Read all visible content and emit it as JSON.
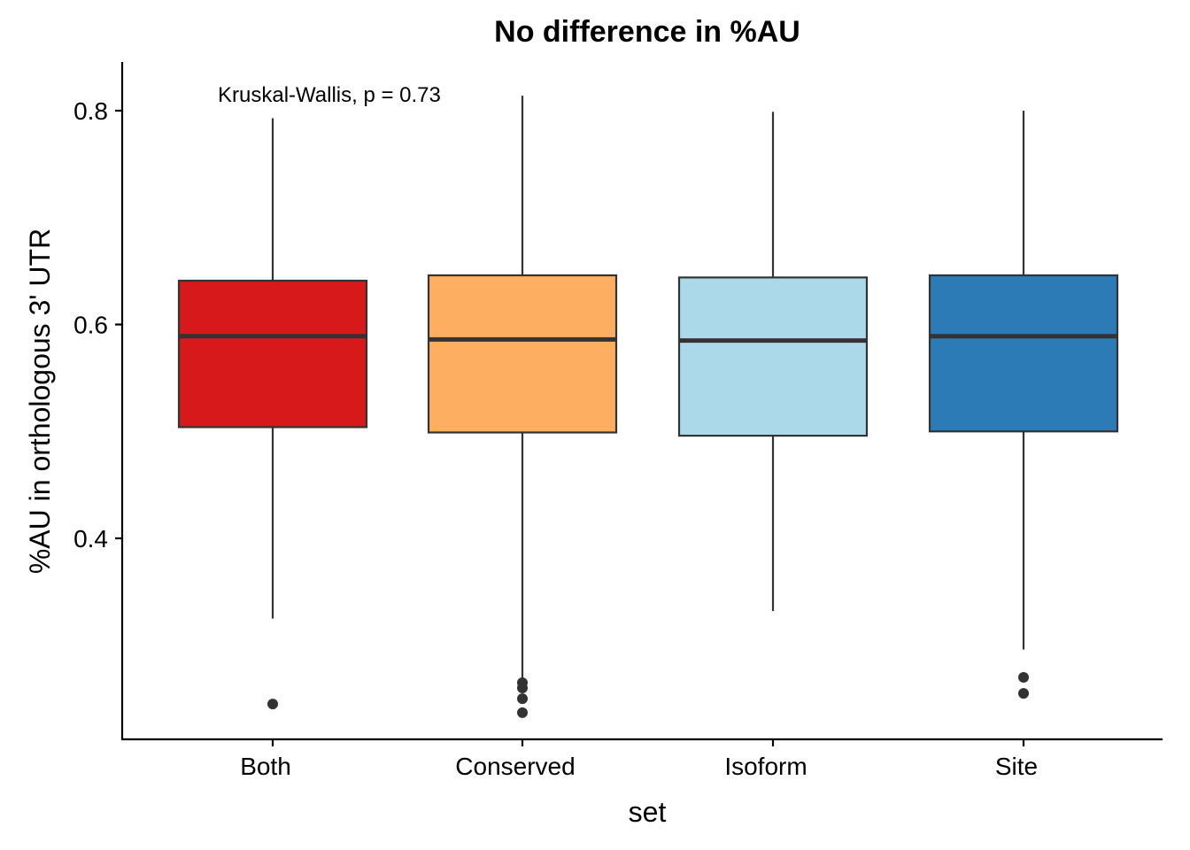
{
  "chart_data": {
    "type": "box",
    "title": "No difference in %AU",
    "xlabel": "set",
    "ylabel": "%AU in orthologous 3' UTR",
    "annotation": "Kruskal-Wallis, p = 0.73",
    "ylim": [
      0.26,
      0.845
    ],
    "yticks": [
      0.4,
      0.6,
      0.8
    ],
    "ytick_labels": [
      "0.4",
      "0.6",
      "0.8"
    ],
    "grid": false,
    "legend": "none",
    "categories": [
      "Both",
      "Conserved",
      "Isoform",
      "Site"
    ],
    "boxes": [
      {
        "name": "Both",
        "color": "#D7191C",
        "min": 0.325,
        "q1": 0.504,
        "median": 0.589,
        "q3": 0.641,
        "max": 0.793,
        "outliers": [
          0.245
        ]
      },
      {
        "name": "Conserved",
        "color": "#FDAE61",
        "min": 0.265,
        "q1": 0.499,
        "median": 0.586,
        "q3": 0.646,
        "max": 0.814,
        "outliers": [
          0.265,
          0.26,
          0.25,
          0.237
        ]
      },
      {
        "name": "Isoform",
        "color": "#ABD9E9",
        "min": 0.332,
        "q1": 0.496,
        "median": 0.585,
        "q3": 0.644,
        "max": 0.799,
        "outliers": []
      },
      {
        "name": "Site",
        "color": "#2C7BB6",
        "min": 0.296,
        "q1": 0.5,
        "median": 0.589,
        "q3": 0.646,
        "max": 0.8,
        "outliers": [
          0.27,
          0.255
        ]
      }
    ]
  }
}
